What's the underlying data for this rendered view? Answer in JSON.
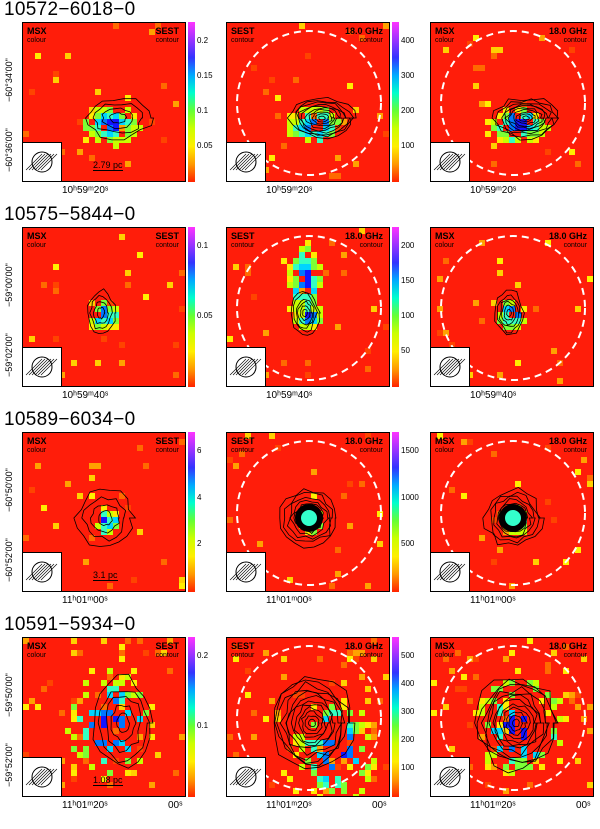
{
  "rows": [
    {
      "title": "10572−6018−0",
      "cbar1_ticks": [
        "0.2",
        "0.15",
        "0.1",
        "0.05"
      ],
      "cbar2_ticks": [
        "400",
        "300",
        "200",
        "100"
      ],
      "y_ticks": [
        "−60°34'00\"",
        "−60°36'00\""
      ],
      "x_tick": "10ʰ59ᵐ20ˢ",
      "scale": "2.79 pc"
    },
    {
      "title": "10575−5844−0",
      "cbar1_ticks": [
        "0.1",
        "0.05"
      ],
      "cbar2_ticks": [
        "200",
        "150",
        "100",
        "50"
      ],
      "y_ticks": [
        "−59°00'00\"",
        "−59°02'00\""
      ],
      "x_tick": "10ʰ59ᵐ40ˢ",
      "scale": ""
    },
    {
      "title": "10589−6034−0",
      "cbar1_ticks": [
        "6",
        "4",
        "2"
      ],
      "cbar2_ticks": [
        "1500",
        "1000",
        "500"
      ],
      "y_ticks": [
        "−60°50'00\"",
        "−60°52'00\""
      ],
      "x_tick": "11ʰ01ᵐ00ˢ",
      "scale": "3.1 pc"
    },
    {
      "title": "10591−5934−0",
      "cbar1_ticks": [
        "0.2",
        "0.1"
      ],
      "cbar2_ticks": [
        "500",
        "400",
        "300",
        "200",
        "100"
      ],
      "y_ticks": [
        "−59°50'00\"",
        "−59°52'00\""
      ],
      "x_tick": "11ʰ01ᵐ20ˢ",
      "x_tick2": "00ˢ",
      "scale": "1.08 pc"
    }
  ],
  "labels": {
    "msx": "MSX",
    "colour": "colour",
    "sest": "SEST",
    "contour": "contour",
    "freq": "18.0 GHz"
  },
  "colors": {
    "background": "#ff1d0a"
  }
}
